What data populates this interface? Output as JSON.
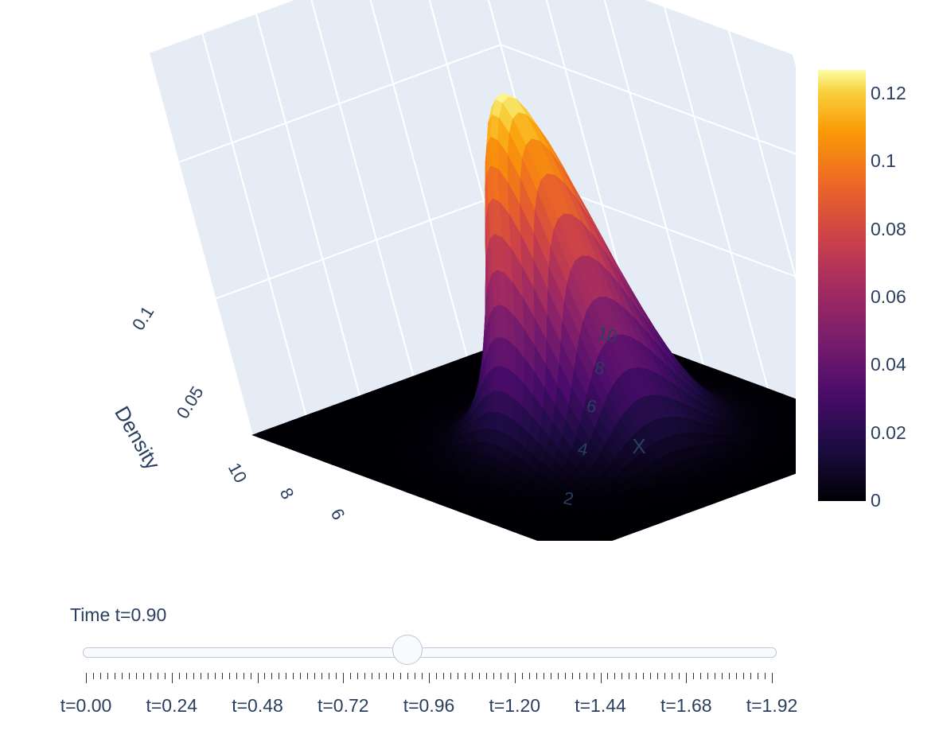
{
  "chart_data": {
    "type": "surface",
    "colorscale": "inferno",
    "colorbar": {
      "ticks": [
        "0",
        "0.02",
        "0.04",
        "0.06",
        "0.08",
        "0.1",
        "0.12"
      ],
      "range": [
        0,
        0.127
      ]
    },
    "axes": {
      "x": {
        "title": "X",
        "ticks": [
          "2",
          "4",
          "6",
          "8",
          "10"
        ]
      },
      "y": {
        "title": "",
        "ticks": [
          "6",
          "8",
          "10"
        ]
      },
      "z": {
        "title": "Density",
        "ticks": [
          "0.05",
          "0.1"
        ]
      }
    },
    "surface": {
      "shape": "gaussian",
      "peak": 0.127,
      "center_x": 6,
      "center_y": 6
    },
    "colors": {
      "background": "#e5ecf6",
      "grid": "#ffffff",
      "text": "#2a3f5f"
    }
  },
  "slider": {
    "current_label": "Time t=0.90",
    "value": 0.9,
    "min": 0.0,
    "max": 1.92,
    "tick_labels": [
      "t=0.00",
      "t=0.24",
      "t=0.48",
      "t=0.72",
      "t=0.96",
      "t=1.20",
      "t=1.44",
      "t=1.68",
      "t=1.92"
    ]
  }
}
